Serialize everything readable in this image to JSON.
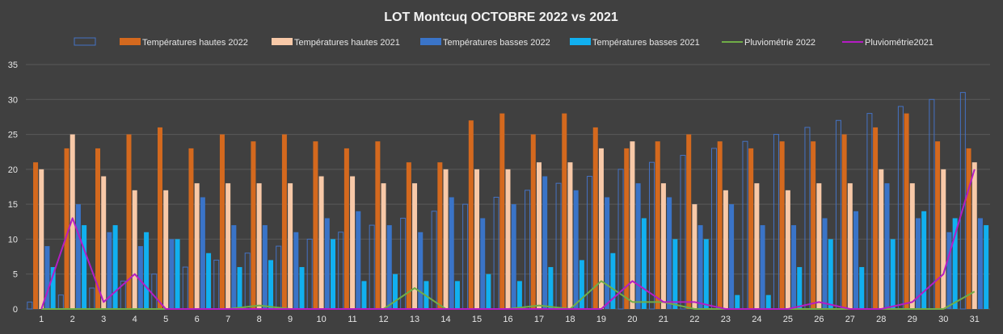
{
  "chart_data": {
    "type": "bar",
    "title": "LOT Montcuq OCTOBRE 2022 vs 2021",
    "xlabel": "",
    "ylabel": "",
    "ylim": [
      0,
      35
    ],
    "yticks": [
      0,
      5,
      10,
      15,
      20,
      25,
      30,
      35
    ],
    "grid": true,
    "legend_position": "top",
    "categories": [
      "1",
      "2",
      "3",
      "4",
      "5",
      "6",
      "7",
      "8",
      "9",
      "10",
      "11",
      "12",
      "13",
      "14",
      "15",
      "16",
      "17",
      "18",
      "19",
      "20",
      "21",
      "22",
      "23",
      "24",
      "25",
      "26",
      "27",
      "28",
      "29",
      "30",
      "31"
    ],
    "series": [
      {
        "name": "",
        "kind": "bar",
        "style": "outline",
        "color": "#4472c4",
        "values": [
          1,
          2,
          3,
          4,
          5,
          6,
          7,
          8,
          9,
          10,
          11,
          12,
          13,
          14,
          15,
          16,
          17,
          18,
          19,
          20,
          21,
          22,
          23,
          24,
          25,
          26,
          27,
          28,
          29,
          30,
          31
        ]
      },
      {
        "name": "Températures hautes 2022",
        "kind": "bar",
        "color": "#d4691e",
        "values": [
          21,
          23,
          23,
          25,
          26,
          23,
          25,
          24,
          25,
          24,
          23,
          24,
          21,
          21,
          27,
          28,
          25,
          28,
          26,
          23,
          24,
          25,
          24,
          23,
          24,
          24,
          25,
          26,
          28,
          24,
          23
        ]
      },
      {
        "name": "Températures hautes 2021",
        "kind": "bar",
        "color": "#f8c9a8",
        "values": [
          20,
          25,
          19,
          17,
          17,
          18,
          18,
          18,
          18,
          19,
          19,
          18,
          18,
          20,
          20,
          20,
          21,
          21,
          23,
          24,
          18,
          15,
          17,
          18,
          17,
          18,
          18,
          20,
          18,
          20,
          21
        ]
      },
      {
        "name": "Températures basses 2022",
        "kind": "bar",
        "color": "#3a74c8",
        "values": [
          9,
          15,
          11,
          9,
          10,
          16,
          12,
          12,
          11,
          13,
          14,
          12,
          11,
          16,
          13,
          15,
          19,
          17,
          16,
          18,
          16,
          12,
          15,
          12,
          12,
          13,
          14,
          18,
          13,
          11,
          13
        ]
      },
      {
        "name": "Températures basses 2021",
        "kind": "bar",
        "color": "#11b0f0",
        "values": [
          6,
          12,
          12,
          11,
          10,
          8,
          6,
          7,
          6,
          10,
          4,
          5,
          4,
          4,
          5,
          4,
          6,
          7,
          8,
          13,
          10,
          10,
          2,
          2,
          6,
          10,
          6,
          10,
          14,
          13,
          12
        ]
      },
      {
        "name": "Pluviométrie 2022",
        "kind": "line",
        "color": "#70ad47",
        "values": [
          0,
          0,
          0,
          0,
          0,
          0,
          0,
          0.5,
          0,
          0,
          0,
          0,
          3,
          0,
          0,
          0,
          0.5,
          0,
          4,
          1,
          1,
          0,
          0,
          0,
          0,
          0,
          0,
          0,
          0,
          0,
          2.5
        ]
      },
      {
        "name": "Pluviométrie2021",
        "kind": "line",
        "color": "#b51cc4",
        "values": [
          0,
          13,
          1,
          5,
          0,
          0,
          0,
          0,
          0,
          0,
          0,
          0,
          0,
          0,
          0,
          0,
          0,
          0,
          0,
          4,
          1,
          1,
          0,
          0,
          0,
          1,
          0,
          0,
          1,
          5,
          20
        ]
      }
    ]
  }
}
